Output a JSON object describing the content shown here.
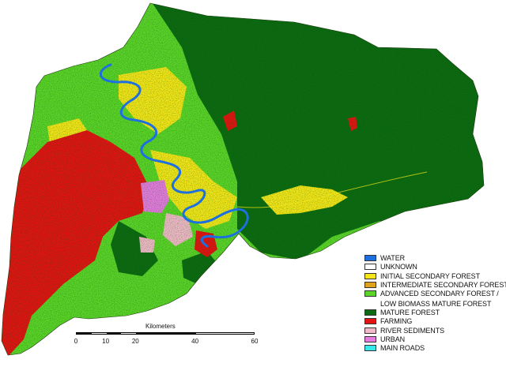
{
  "legend": {
    "items": [
      {
        "label": "WATER",
        "color": "#1e6fe0"
      },
      {
        "label": "UNKNOWN",
        "color": "#ffffff"
      },
      {
        "label": "INITIAL SECONDARY FOREST",
        "color": "#f5e61a"
      },
      {
        "label": "INTERMEDIATE SECONDARY FOREST",
        "color": "#e0a21e"
      },
      {
        "label": "ADVANCED SECONDARY FOREST /",
        "label2": "LOW BIOMASS MATURE FOREST",
        "color": "#5cd42a"
      },
      {
        "label": "MATURE FOREST",
        "color": "#0d6a12"
      },
      {
        "label": "FARMING",
        "color": "#e31313"
      },
      {
        "label": "RIVER SEDIMENTS",
        "color": "#f2b9c8"
      },
      {
        "label": "URBAN",
        "color": "#e67be0"
      },
      {
        "label": "MAIN ROADS",
        "color": "#38e8e8"
      }
    ]
  },
  "scale": {
    "title": "Kilometers",
    "ticks": [
      "0",
      "10",
      "20",
      "40",
      "60"
    ]
  },
  "colors": {
    "mature_forest": "#0d6a12",
    "advanced_forest": "#5cd42a",
    "initial_forest": "#f5e61a",
    "farming": "#e31313",
    "water": "#1e6fe0",
    "urban": "#e67be0",
    "sediments": "#f2b9c8"
  }
}
